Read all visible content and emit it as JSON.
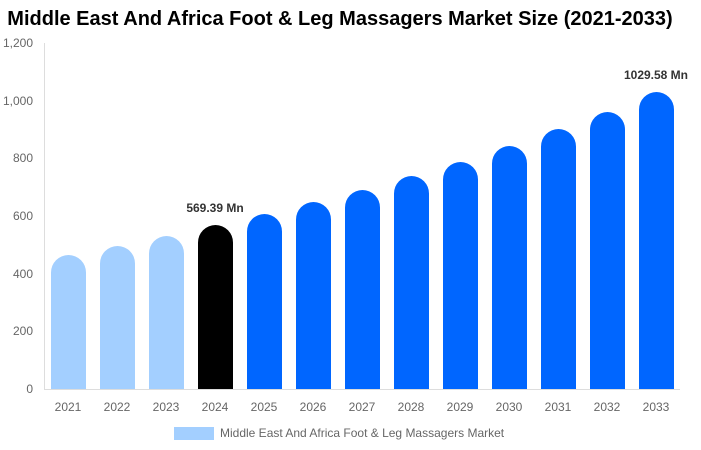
{
  "chart_data": {
    "type": "bar",
    "title": "Middle East And Africa Foot & Leg Massagers Market Size (2021-2033)",
    "xlabel": "",
    "ylabel": "",
    "ylim": [
      0,
      1200
    ],
    "yticks": [
      "0",
      "200",
      "400",
      "600",
      "800",
      "1,000",
      "1,200"
    ],
    "categories": [
      "2021",
      "2022",
      "2023",
      "2024",
      "2025",
      "2026",
      "2027",
      "2028",
      "2029",
      "2030",
      "2031",
      "2032",
      "2033"
    ],
    "series": [
      {
        "name": "Middle East And Africa Foot & Leg Massagers Market",
        "values": [
          465,
          496,
          531,
          569.39,
          607,
          649,
          690,
          739,
          787,
          843,
          902,
          961,
          1029.58
        ]
      }
    ],
    "annotations": [
      {
        "category": "2024",
        "text": "569.39 Mn"
      },
      {
        "category": "2033",
        "text": "1029.58 Mn"
      }
    ],
    "bar_colors": [
      "#a3cfff",
      "#a3cfff",
      "#a3cfff",
      "#000000",
      "#0066ff",
      "#0066ff",
      "#0066ff",
      "#0066ff",
      "#0066ff",
      "#0066ff",
      "#0066ff",
      "#0066ff",
      "#0066ff"
    ],
    "legend": {
      "position": "bottom",
      "label": "Middle East And Africa Foot & Leg Massagers Market",
      "color": "#a3cfff"
    },
    "grid": false
  }
}
